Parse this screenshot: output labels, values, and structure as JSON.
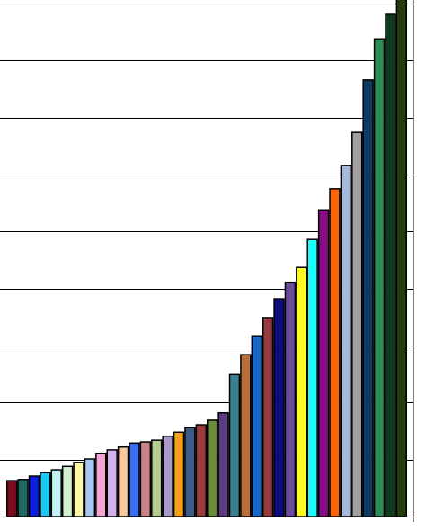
{
  "chart_data": {
    "type": "bar",
    "values": [
      0.63,
      0.65,
      0.71,
      0.77,
      0.82,
      0.88,
      0.95,
      1.01,
      1.11,
      1.17,
      1.22,
      1.29,
      1.31,
      1.34,
      1.41,
      1.48,
      1.56,
      1.61,
      1.69,
      1.82,
      2.49,
      2.84,
      3.17,
      3.49,
      3.82,
      4.11,
      4.37,
      4.86,
      5.38,
      5.75,
      6.16,
      6.74,
      7.66,
      8.38,
      8.81,
      9.1
    ],
    "colors": [
      "#7a0c1e",
      "#1f6b63",
      "#0a1fe0",
      "#1ec8f0",
      "#c0f4f6",
      "#d0f0d0",
      "#fcf8a8",
      "#a8c8f0",
      "#f4a4d4",
      "#d4b0ec",
      "#f8c8a0",
      "#3c6cf0",
      "#cc8088",
      "#b4cc90",
      "#a898c8",
      "#f4a018",
      "#3c5c88",
      "#9c3c3c",
      "#6c8c3c",
      "#5c3c7c",
      "#3c8090",
      "#b87038",
      "#1868c8",
      "#943c40",
      "#0c0c80",
      "#6c4c9c",
      "#fcfc20",
      "#1cfcfc",
      "#880c88",
      "#fc6408",
      "#a8b8dc",
      "#a0a0a0",
      "#0c3c64",
      "#2c8c54",
      "#0c3c1c",
      "#243c0c"
    ],
    "ylim": [
      0,
      9
    ],
    "yticks": [
      0,
      1,
      2,
      3,
      4,
      5,
      6,
      7,
      8,
      9
    ],
    "grid": true
  }
}
